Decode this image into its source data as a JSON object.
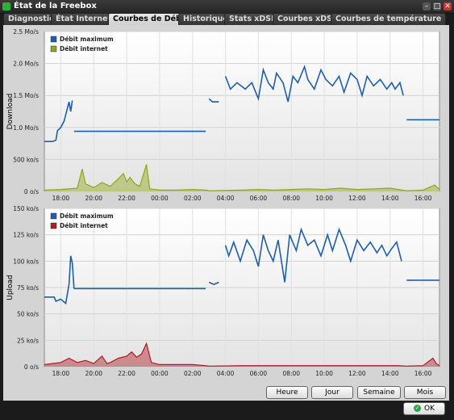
{
  "window": {
    "title": "État de la Freebox"
  },
  "tabs": [
    {
      "label": "Diagnostic"
    },
    {
      "label": "État Internet"
    },
    {
      "label": "Courbes de Débit"
    },
    {
      "label": "Historique"
    },
    {
      "label": "Stats xDSL"
    },
    {
      "label": "Courbes xDSL"
    },
    {
      "label": "Courbes de température"
    }
  ],
  "active_tab": 2,
  "range_buttons": [
    {
      "label": "Heure"
    },
    {
      "label": "Jour"
    },
    {
      "label": "Semaine"
    },
    {
      "label": "Mois"
    }
  ],
  "ok_label": "OK",
  "colors": {
    "max_line": "#1f5ea8",
    "download_internet": "#8fa61b",
    "upload_internet": "#b01a25"
  },
  "chart_data": [
    {
      "type": "line",
      "ylabel": "Download",
      "yticks": [
        "0 o/s",
        "500 ko/s",
        "1.0 Mo/s",
        "1.5 Mo/s",
        "2.0 Mo/s",
        "2.5 Mo/s"
      ],
      "ylim": [
        0,
        2.5
      ],
      "xticks": [
        "18:00",
        "20:00",
        "22:00",
        "00:00",
        "02:00",
        "04:00",
        "06:00",
        "08:00",
        "10:00",
        "12:00",
        "14:00",
        "16:00"
      ],
      "xlim": [
        17,
        41
      ],
      "grid": true,
      "legend": "top-left",
      "series": [
        {
          "name": "Débit maximum",
          "color": "#1f5ea8",
          "fill": false,
          "values": [
            [
              17,
              0.78
            ],
            [
              17.5,
              0.78
            ],
            [
              17.7,
              0.8
            ],
            [
              17.8,
              0.95
            ],
            [
              18.0,
              1.0
            ],
            [
              18.2,
              1.1
            ],
            [
              18.4,
              1.3
            ],
            [
              18.5,
              1.4
            ],
            [
              18.6,
              1.25
            ],
            [
              18.7,
              1.42
            ],
            [
              null,
              null
            ],
            [
              18.8,
              0.94
            ],
            [
              26.8,
              0.94
            ],
            [
              null,
              null
            ],
            [
              27.0,
              1.45
            ],
            [
              27.2,
              1.4
            ],
            [
              27.6,
              1.4
            ],
            [
              null,
              null
            ],
            [
              28.0,
              1.8
            ],
            [
              28.3,
              1.6
            ],
            [
              28.7,
              1.7
            ],
            [
              29.2,
              1.6
            ],
            [
              29.6,
              1.7
            ],
            [
              30.0,
              1.45
            ],
            [
              30.3,
              1.9
            ],
            [
              30.6,
              1.7
            ],
            [
              30.9,
              1.6
            ],
            [
              31.1,
              1.85
            ],
            [
              31.5,
              1.7
            ],
            [
              31.8,
              1.4
            ],
            [
              32.1,
              1.8
            ],
            [
              32.4,
              1.7
            ],
            [
              32.8,
              1.95
            ],
            [
              33.0,
              1.75
            ],
            [
              33.4,
              1.6
            ],
            [
              33.8,
              1.9
            ],
            [
              34.1,
              1.75
            ],
            [
              34.5,
              1.65
            ],
            [
              34.9,
              1.8
            ],
            [
              35.2,
              1.55
            ],
            [
              35.6,
              1.85
            ],
            [
              36.0,
              1.75
            ],
            [
              36.3,
              1.5
            ],
            [
              36.6,
              1.8
            ],
            [
              37.0,
              1.65
            ],
            [
              37.4,
              1.75
            ],
            [
              37.8,
              1.6
            ],
            [
              38.1,
              1.7
            ],
            [
              38.3,
              1.6
            ],
            [
              38.6,
              1.7
            ],
            [
              38.8,
              1.5
            ],
            [
              null,
              null
            ],
            [
              39.0,
              1.12
            ],
            [
              41.0,
              1.12
            ]
          ]
        },
        {
          "name": "Débit internet",
          "color": "#8fa61b",
          "fill": true,
          "values": [
            [
              17,
              0.02
            ],
            [
              18,
              0.03
            ],
            [
              19,
              0.05
            ],
            [
              19.3,
              0.35
            ],
            [
              19.5,
              0.12
            ],
            [
              20,
              0.06
            ],
            [
              20.5,
              0.14
            ],
            [
              21,
              0.08
            ],
            [
              21.5,
              0.2
            ],
            [
              21.8,
              0.28
            ],
            [
              22,
              0.15
            ],
            [
              22.2,
              0.22
            ],
            [
              22.5,
              0.12
            ],
            [
              22.8,
              0.08
            ],
            [
              23.2,
              0.42
            ],
            [
              23.4,
              0.04
            ],
            [
              24,
              0.02
            ],
            [
              25,
              0.02
            ],
            [
              26,
              0.03
            ],
            [
              26.8,
              0.02
            ],
            [
              27,
              0.01
            ],
            [
              29,
              0.02
            ],
            [
              30,
              0.03
            ],
            [
              31,
              0.02
            ],
            [
              32,
              0.03
            ],
            [
              33,
              0.04
            ],
            [
              34,
              0.03
            ],
            [
              35,
              0.05
            ],
            [
              36,
              0.03
            ],
            [
              37,
              0.04
            ],
            [
              38,
              0.05
            ],
            [
              38.5,
              0.03
            ],
            [
              39,
              0.01
            ],
            [
              40,
              0.02
            ],
            [
              40.7,
              0.1
            ],
            [
              41,
              0.03
            ]
          ]
        }
      ]
    },
    {
      "type": "line",
      "ylabel": "Upload",
      "yticks": [
        "0 o/s",
        "25 ko/s",
        "50 ko/s",
        "75 ko/s",
        "100 ko/s",
        "125 ko/s",
        "150 ko/s"
      ],
      "ylim": [
        0,
        150
      ],
      "xticks": [
        "18:00",
        "20:00",
        "22:00",
        "00:00",
        "02:00",
        "04:00",
        "06:00",
        "08:00",
        "10:00",
        "12:00",
        "14:00",
        "16:00"
      ],
      "xlim": [
        17,
        41
      ],
      "grid": true,
      "legend": "top-left",
      "series": [
        {
          "name": "Débit maximum",
          "color": "#1f5ea8",
          "fill": false,
          "values": [
            [
              17,
              66
            ],
            [
              17.6,
              66
            ],
            [
              17.7,
              62
            ],
            [
              18.0,
              64
            ],
            [
              18.3,
              60
            ],
            [
              18.5,
              78
            ],
            [
              18.6,
              105
            ],
            [
              18.7,
              98
            ],
            [
              18.8,
              74
            ],
            [
              null,
              null
            ],
            [
              18.8,
              74
            ],
            [
              26.8,
              74
            ],
            [
              null,
              null
            ],
            [
              27.0,
              80
            ],
            [
              27.3,
              78
            ],
            [
              27.6,
              80
            ],
            [
              null,
              null
            ],
            [
              28.0,
              115
            ],
            [
              28.2,
              105
            ],
            [
              28.5,
              118
            ],
            [
              28.9,
              100
            ],
            [
              29.3,
              120
            ],
            [
              29.7,
              110
            ],
            [
              30.0,
              95
            ],
            [
              30.3,
              125
            ],
            [
              30.6,
              110
            ],
            [
              30.9,
              100
            ],
            [
              31.2,
              120
            ],
            [
              31.6,
              80
            ],
            [
              31.9,
              125
            ],
            [
              32.3,
              110
            ],
            [
              32.6,
              130
            ],
            [
              33.0,
              115
            ],
            [
              33.4,
              120
            ],
            [
              33.8,
              105
            ],
            [
              34.2,
              125
            ],
            [
              34.5,
              110
            ],
            [
              34.9,
              130
            ],
            [
              35.3,
              115
            ],
            [
              35.6,
              100
            ],
            [
              36.0,
              120
            ],
            [
              36.4,
              110
            ],
            [
              36.8,
              118
            ],
            [
              37.2,
              108
            ],
            [
              37.5,
              115
            ],
            [
              37.8,
              105
            ],
            [
              38.1,
              112
            ],
            [
              38.4,
              118
            ],
            [
              38.7,
              100
            ],
            [
              null,
              null
            ],
            [
              39.0,
              82
            ],
            [
              41.0,
              82
            ]
          ]
        },
        {
          "name": "Débit internet",
          "color": "#b01a25",
          "fill": true,
          "values": [
            [
              17,
              2
            ],
            [
              17.5,
              3
            ],
            [
              18,
              4
            ],
            [
              18.5,
              8
            ],
            [
              19,
              4
            ],
            [
              19.5,
              6
            ],
            [
              20,
              3
            ],
            [
              20.5,
              10
            ],
            [
              20.8,
              3
            ],
            [
              21,
              4
            ],
            [
              21.5,
              8
            ],
            [
              22,
              10
            ],
            [
              22.3,
              14
            ],
            [
              22.6,
              9
            ],
            [
              22.9,
              12
            ],
            [
              23.2,
              22
            ],
            [
              23.5,
              4
            ],
            [
              24,
              2
            ],
            [
              25,
              2
            ],
            [
              26,
              2
            ],
            [
              26.8,
              1
            ],
            [
              27,
              0.5
            ],
            [
              29,
              1
            ],
            [
              30,
              1
            ],
            [
              31,
              1
            ],
            [
              32,
              1
            ],
            [
              33,
              1
            ],
            [
              34,
              1
            ],
            [
              35,
              1
            ],
            [
              36,
              1
            ],
            [
              37,
              1
            ],
            [
              38,
              1
            ],
            [
              38.5,
              1
            ],
            [
              39,
              0.5
            ],
            [
              40,
              1
            ],
            [
              40.6,
              8
            ],
            [
              40.8,
              3
            ],
            [
              41,
              1
            ]
          ]
        }
      ]
    }
  ]
}
